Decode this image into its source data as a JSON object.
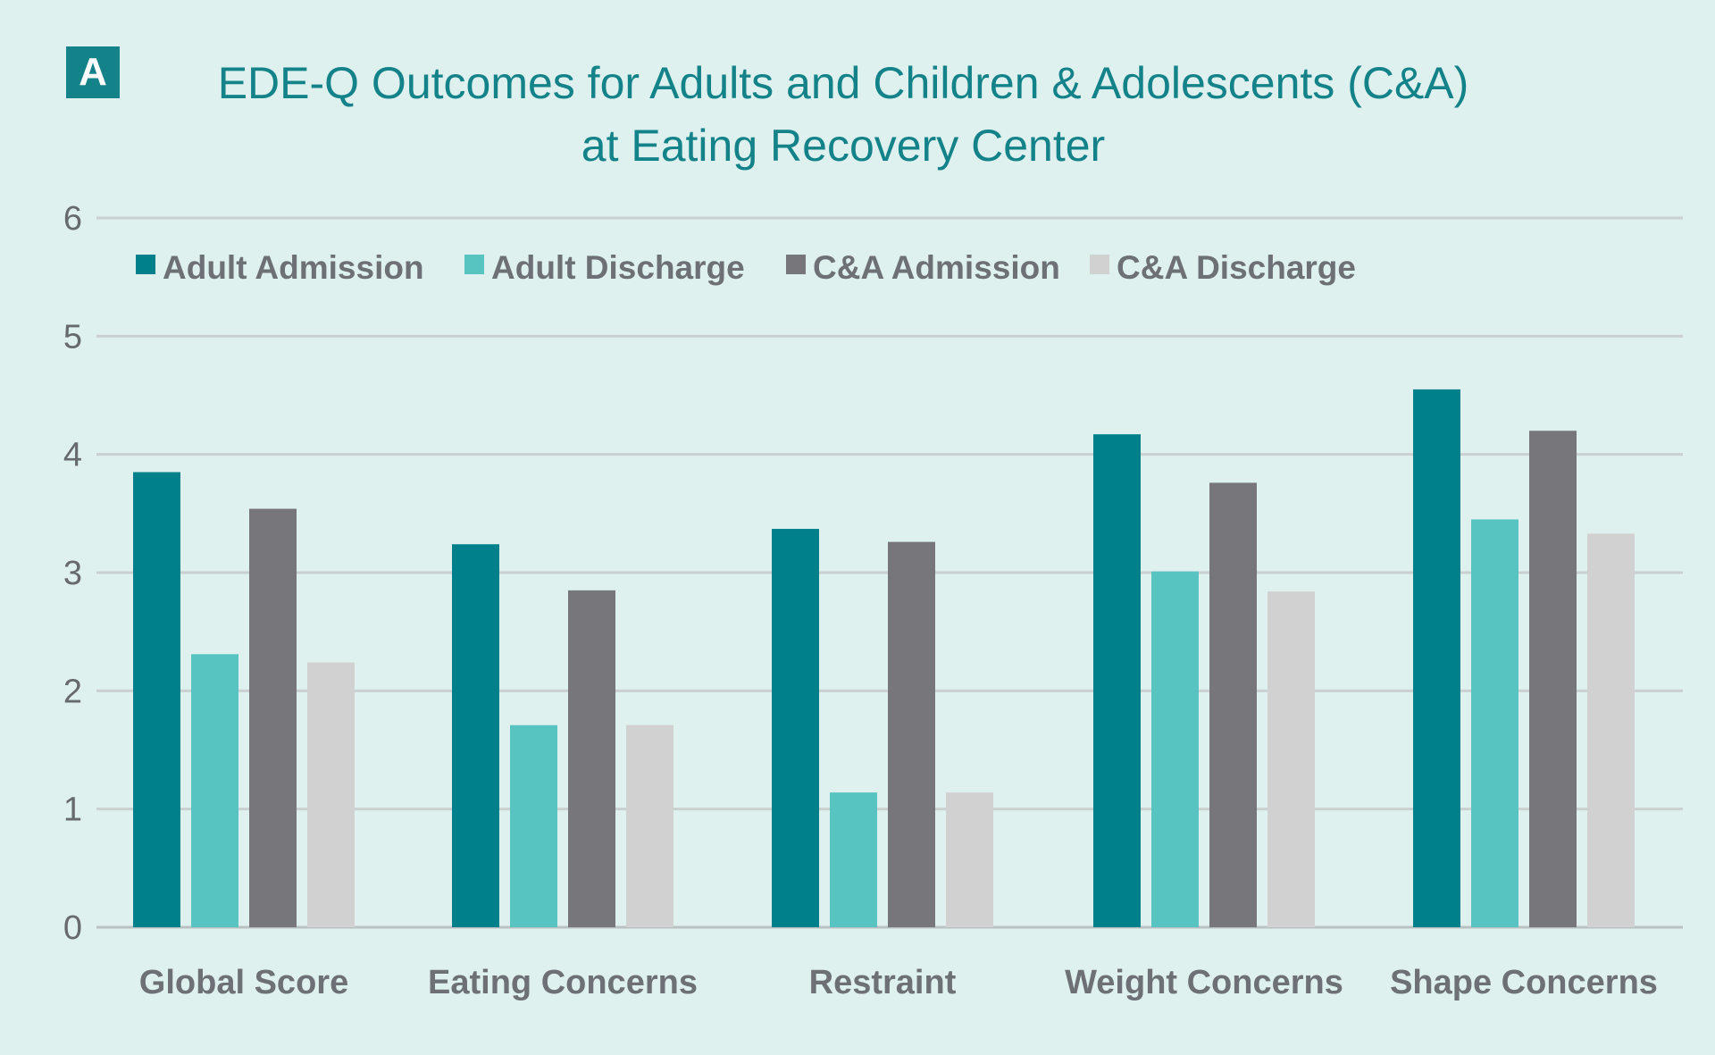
{
  "panel_label": "A",
  "title_lines": [
    "EDE-Q Outcomes for Adults and Children & Adolescents (C&A)",
    "at Eating Recovery Center"
  ],
  "colors": {
    "background": "#dff1ef",
    "title": "#138289",
    "gridline": "#c9d0d0",
    "text": "#6d7075"
  },
  "chart_data": {
    "type": "bar",
    "title": "EDE-Q Outcomes for Adults and Children & Adolescents (C&A) at Eating Recovery Center",
    "xlabel": "",
    "ylabel": "",
    "ylim": [
      0,
      6
    ],
    "yticks": [
      0,
      1,
      2,
      3,
      4,
      5,
      6
    ],
    "grid": true,
    "legend_position": "top",
    "categories": [
      "Global Score",
      "Eating Concerns",
      "Restraint",
      "Weight Concerns",
      "Shape Concerns"
    ],
    "series": [
      {
        "name": "Adult Admission",
        "color": "#00808b",
        "values": [
          3.85,
          3.24,
          3.37,
          4.17,
          4.55
        ]
      },
      {
        "name": "Adult Discharge",
        "color": "#57c4c2",
        "values": [
          2.31,
          1.71,
          1.14,
          3.01,
          3.45
        ]
      },
      {
        "name": "C&A Admission",
        "color": "#77777b",
        "values": [
          3.54,
          2.85,
          3.26,
          3.76,
          4.2
        ]
      },
      {
        "name": "C&A Discharge",
        "color": "#d0d1d0",
        "values": [
          2.24,
          1.71,
          1.14,
          2.84,
          3.33
        ]
      }
    ]
  }
}
